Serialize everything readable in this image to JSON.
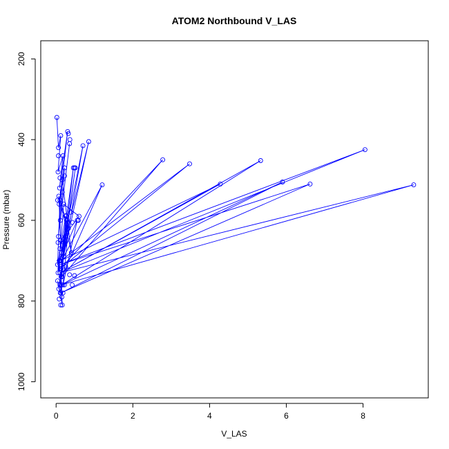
{
  "chart_data": {
    "type": "line",
    "title": "ATOM2 Northbound V_LAS",
    "xlabel": "V_LAS",
    "ylabel": "Pressure (mbar)",
    "xlim": [
      -0.4,
      9.7
    ],
    "ylim": [
      1040,
      155
    ],
    "y_reversed": true,
    "x_ticks": [
      0,
      2,
      4,
      6,
      8
    ],
    "y_ticks": [
      200,
      400,
      600,
      800,
      1000
    ],
    "grid": false,
    "legend": "none",
    "colors": {
      "series": "#0000ff",
      "axis": "#000000",
      "background": "#ffffff"
    },
    "series": [
      {
        "x": [
          0.02,
          0.06,
          0.12,
          0.05,
          0.18,
          0.09,
          0.3,
          0.08,
          0.22,
          0.11,
          0.35,
          0.06,
          0.16,
          0.4,
          0.1,
          0.04,
          0.25,
          0.13,
          0.5,
          0.07
        ],
        "y": [
          345,
          420,
          390,
          480,
          440,
          520,
          380,
          560,
          470,
          600,
          410,
          640,
          500,
          680,
          550,
          710,
          590,
          740,
          470,
          770
        ]
      },
      {
        "x": [
          0.15,
          0.08,
          0.2,
          0.6,
          0.12,
          0.05,
          0.28,
          0.1,
          0.45,
          0.14,
          0.07,
          0.32,
          0.18,
          0.55,
          0.09,
          0.24,
          0.11,
          0.04,
          0.16,
          0.13
        ],
        "y": [
          790,
          700,
          560,
          590,
          650,
          730,
          600,
          760,
          470,
          680,
          540,
          620,
          760,
          600,
          700,
          640,
          780,
          750,
          810,
          720
        ]
      },
      {
        "x": [
          0.12,
          0.85,
          0.1,
          0.7,
          0.2,
          1.2,
          0.15,
          2.78,
          0.1,
          3.48,
          0.12,
          4.28,
          0.1,
          5.33,
          0.15,
          5.9,
          0.12,
          6.62,
          0.1,
          8.05,
          0.1,
          9.32,
          0.14
        ],
        "y": [
          720,
          405,
          700,
          415,
          690,
          512,
          740,
          450,
          720,
          460,
          700,
          510,
          730,
          452,
          760,
          505,
          780,
          510,
          710,
          425,
          730,
          512,
          760
        ]
      }
    ],
    "extra_points": [
      {
        "x": 0.22,
        "y": 760
      },
      {
        "x": 0.42,
        "y": 760
      },
      {
        "x": 0.48,
        "y": 737
      },
      {
        "x": 0.35,
        "y": 735
      },
      {
        "x": 0.25,
        "y": 715
      },
      {
        "x": 0.12,
        "y": 810
      },
      {
        "x": 0.08,
        "y": 795
      },
      {
        "x": 0.18,
        "y": 780
      },
      {
        "x": 0.3,
        "y": 620
      },
      {
        "x": 0.58,
        "y": 600
      },
      {
        "x": 0.42,
        "y": 605
      },
      {
        "x": 0.26,
        "y": 588
      },
      {
        "x": 0.38,
        "y": 580
      },
      {
        "x": 0.05,
        "y": 655
      },
      {
        "x": 0.2,
        "y": 655
      },
      {
        "x": 0.1,
        "y": 670
      },
      {
        "x": 0.36,
        "y": 400
      },
      {
        "x": 0.32,
        "y": 385
      },
      {
        "x": 0.06,
        "y": 440
      },
      {
        "x": 0.22,
        "y": 490
      },
      {
        "x": 0.1,
        "y": 495
      },
      {
        "x": 0.48,
        "y": 470
      },
      {
        "x": 0.04,
        "y": 550
      },
      {
        "x": 0.16,
        "y": 530
      }
    ]
  }
}
